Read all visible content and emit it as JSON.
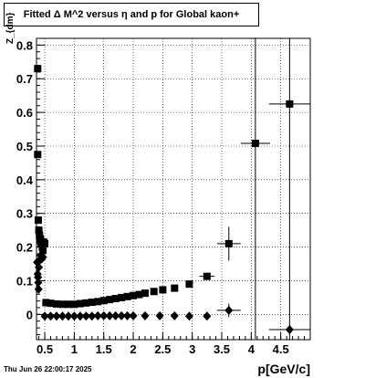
{
  "title": "Fitted Δ M^2 versus η and p for Global kaon+",
  "timestamp": "Thu Jun 26 22:00:17 2025",
  "chart_data": {
    "type": "scatter",
    "xlabel": "p[GeV/c]",
    "ylabel": "Z_{dm}",
    "xlim": [
      0.36,
      5.0
    ],
    "ylim": [
      -0.075,
      0.82
    ],
    "x_ticks": [
      "0.5",
      "1",
      "1.5",
      "2",
      "2.5",
      "3",
      "3.5",
      "4",
      "4.5"
    ],
    "y_ticks": [
      "0",
      "0.1",
      "0.2",
      "0.3",
      "0.4",
      "0.5",
      "0.6",
      "0.7",
      "0.8"
    ],
    "grid": true,
    "series": [
      {
        "marker": "square",
        "points": [
          {
            "x": 0.38,
            "y": 0.73
          },
          {
            "x": 0.38,
            "y": 0.475
          },
          {
            "x": 0.39,
            "y": 0.28
          },
          {
            "x": 0.4,
            "y": 0.25
          },
          {
            "x": 0.41,
            "y": 0.235
          },
          {
            "x": 0.42,
            "y": 0.225
          },
          {
            "x": 0.43,
            "y": 0.22
          },
          {
            "x": 0.44,
            "y": 0.21
          },
          {
            "x": 0.45,
            "y": 0.21
          },
          {
            "x": 0.46,
            "y": 0.2
          },
          {
            "x": 0.47,
            "y": 0.19
          },
          {
            "x": 0.48,
            "y": 0.215
          },
          {
            "x": 0.5,
            "y": 0.21
          },
          {
            "x": 0.52,
            "y": 0.035
          },
          {
            "x": 0.6,
            "y": 0.033
          },
          {
            "x": 0.7,
            "y": 0.031
          },
          {
            "x": 0.8,
            "y": 0.03
          },
          {
            "x": 0.9,
            "y": 0.03
          },
          {
            "x": 1.0,
            "y": 0.03
          },
          {
            "x": 1.1,
            "y": 0.032
          },
          {
            "x": 1.2,
            "y": 0.034
          },
          {
            "x": 1.3,
            "y": 0.036
          },
          {
            "x": 1.4,
            "y": 0.038
          },
          {
            "x": 1.5,
            "y": 0.041
          },
          {
            "x": 1.6,
            "y": 0.044
          },
          {
            "x": 1.7,
            "y": 0.047
          },
          {
            "x": 1.8,
            "y": 0.05
          },
          {
            "x": 1.9,
            "y": 0.053
          },
          {
            "x": 2.0,
            "y": 0.056
          },
          {
            "x": 2.1,
            "y": 0.059
          },
          {
            "x": 2.2,
            "y": 0.063
          },
          {
            "x": 2.35,
            "y": 0.068
          },
          {
            "x": 2.5,
            "y": 0.073
          },
          {
            "x": 2.7,
            "y": 0.078
          },
          {
            "x": 2.95,
            "y": 0.09
          },
          {
            "x": 3.25,
            "y": 0.113,
            "xerr": 0.13
          },
          {
            "x": 3.62,
            "y": 0.21,
            "xerr": 0.2,
            "yerr": 0.05
          },
          {
            "x": 4.07,
            "y": 0.508,
            "xerr": 0.25,
            "yerr_low": 0.58,
            "yerr_high": 0.32
          },
          {
            "x": 4.65,
            "y": 0.625,
            "xerr": 0.35,
            "yerr_low": 0.7,
            "yerr_high": 0.2
          }
        ]
      },
      {
        "marker": "diamond",
        "points": [
          {
            "x": 0.37,
            "y": 0.155
          },
          {
            "x": 0.38,
            "y": 0.12
          },
          {
            "x": 0.385,
            "y": 0.11
          },
          {
            "x": 0.39,
            "y": 0.095
          },
          {
            "x": 0.395,
            "y": 0.075
          },
          {
            "x": 0.4,
            "y": 0.14
          },
          {
            "x": 0.41,
            "y": 0.16
          },
          {
            "x": 0.43,
            "y": 0.175
          },
          {
            "x": 0.45,
            "y": 0.165
          },
          {
            "x": 0.47,
            "y": 0.17
          },
          {
            "x": 0.5,
            "y": -0.005
          },
          {
            "x": 0.6,
            "y": -0.005
          },
          {
            "x": 0.7,
            "y": -0.005
          },
          {
            "x": 0.8,
            "y": -0.005
          },
          {
            "x": 0.9,
            "y": -0.005
          },
          {
            "x": 1.0,
            "y": -0.005
          },
          {
            "x": 1.1,
            "y": -0.005
          },
          {
            "x": 1.2,
            "y": -0.005
          },
          {
            "x": 1.3,
            "y": -0.005
          },
          {
            "x": 1.4,
            "y": -0.004
          },
          {
            "x": 1.5,
            "y": -0.004
          },
          {
            "x": 1.6,
            "y": -0.004
          },
          {
            "x": 1.7,
            "y": -0.004
          },
          {
            "x": 1.8,
            "y": -0.004
          },
          {
            "x": 1.9,
            "y": -0.004
          },
          {
            "x": 2.0,
            "y": -0.004
          },
          {
            "x": 2.2,
            "y": -0.004
          },
          {
            "x": 2.45,
            "y": -0.004
          },
          {
            "x": 2.7,
            "y": -0.004
          },
          {
            "x": 2.95,
            "y": -0.005
          },
          {
            "x": 3.25,
            "y": -0.005
          },
          {
            "x": 3.62,
            "y": 0.012,
            "xerr": 0.2,
            "yerr": 0.02
          },
          {
            "x": 4.65,
            "y": -0.045,
            "xerr": 0.35
          }
        ]
      }
    ]
  }
}
